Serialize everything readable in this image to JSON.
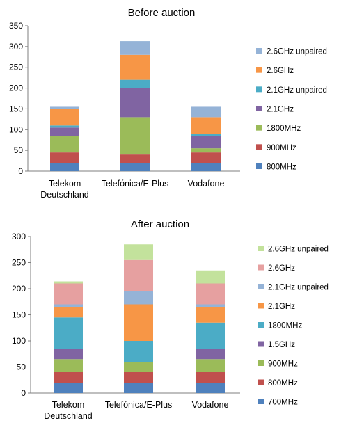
{
  "chart_data": [
    {
      "type": "bar",
      "stacked": true,
      "title": "Before auction",
      "xlabel": "",
      "ylabel": "",
      "categories": [
        [
          "Telekom",
          "Deutschland"
        ],
        [
          "Telefónica/E-Plus"
        ],
        [
          "Vodafone"
        ]
      ],
      "ylim": [
        0,
        350
      ],
      "yticks": [
        0,
        50,
        100,
        150,
        200,
        250,
        300,
        350
      ],
      "grid": false,
      "legend_position": "right",
      "series": [
        {
          "name": "800MHz",
          "color": "#4F81BD",
          "values": [
            20,
            20,
            20
          ]
        },
        {
          "name": "900MHz",
          "color": "#C0504D",
          "values": [
            25,
            20,
            25
          ]
        },
        {
          "name": "1800MHz",
          "color": "#9BBB59",
          "values": [
            40,
            90,
            10
          ]
        },
        {
          "name": "2.1GHz",
          "color": "#8064A2",
          "values": [
            20,
            70,
            30
          ]
        },
        {
          "name": "2.1GHz unpaired",
          "color": "#4BACC6",
          "values": [
            5,
            20,
            5
          ]
        },
        {
          "name": "2.6GHz",
          "color": "#F79646",
          "values": [
            40,
            60,
            40
          ]
        },
        {
          "name": "2.6GHz unpaired",
          "color": "#95B3D7",
          "values": [
            5,
            33,
            25
          ]
        }
      ]
    },
    {
      "type": "bar",
      "stacked": true,
      "title": "After auction",
      "xlabel": "",
      "ylabel": "",
      "categories": [
        [
          "Telekom",
          "Deutschland"
        ],
        [
          "Telefónica/E-Plus"
        ],
        [
          "Vodafone"
        ]
      ],
      "ylim": [
        0,
        300
      ],
      "yticks": [
        0,
        50,
        100,
        150,
        200,
        250,
        300
      ],
      "grid": false,
      "legend_position": "right",
      "series": [
        {
          "name": "700MHz",
          "color": "#4F81BD",
          "values": [
            20,
            20,
            20
          ]
        },
        {
          "name": "800MHz",
          "color": "#C0504D",
          "values": [
            20,
            20,
            20
          ]
        },
        {
          "name": "900MHz",
          "color": "#9BBB59",
          "values": [
            25,
            20,
            25
          ]
        },
        {
          "name": "1.5GHz",
          "color": "#8064A2",
          "values": [
            20,
            0,
            20
          ]
        },
        {
          "name": "1800MHz",
          "color": "#4BACC6",
          "values": [
            60,
            40,
            50
          ]
        },
        {
          "name": "2.1GHz",
          "color": "#F79646",
          "values": [
            20,
            70,
            30
          ]
        },
        {
          "name": "2.1GHz unpaired",
          "color": "#95B3D7",
          "values": [
            5,
            25,
            5
          ]
        },
        {
          "name": "2.6GHz",
          "color": "#E6A0A0",
          "values": [
            40,
            60,
            40
          ]
        },
        {
          "name": "2.6GHz unpaired",
          "color": "#C3E29C",
          "values": [
            4,
            30,
            25
          ]
        }
      ]
    }
  ]
}
